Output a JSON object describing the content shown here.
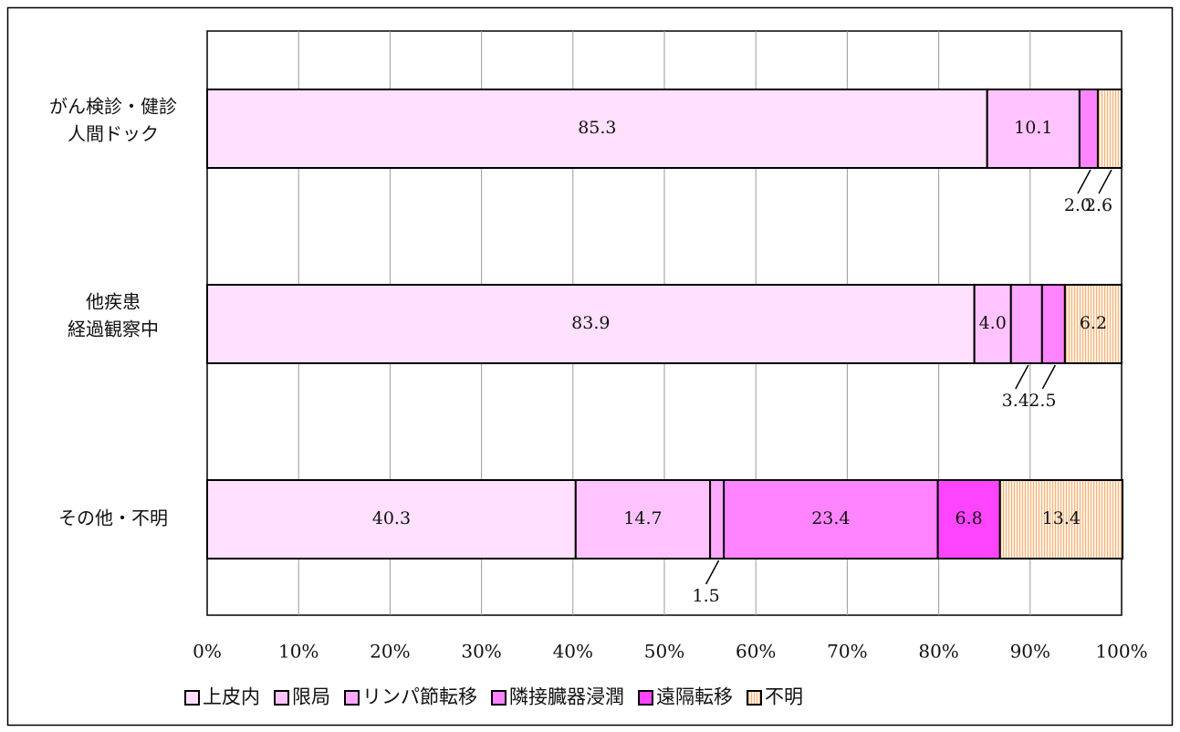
{
  "chart_data": {
    "type": "bar",
    "orientation": "horizontal",
    "stacked": "percent",
    "categories": [
      "がん検診・健診\n人間ドック",
      "他疾患\n経過観察中",
      "その他・不明"
    ],
    "series": [
      {
        "name": "上皮内",
        "color": "#ffe0ff",
        "values": [
          85.3,
          83.9,
          40.3
        ]
      },
      {
        "name": "限局",
        "color": "#ffc4ff",
        "values": [
          10.1,
          4.0,
          14.7
        ]
      },
      {
        "name": "リンパ節転移",
        "color": "#ffa8ff",
        "values": [
          0.0,
          3.4,
          1.5
        ]
      },
      {
        "name": "隣接臓器浸潤",
        "color": "#ff84ff",
        "values": [
          2.0,
          2.5,
          23.4
        ]
      },
      {
        "name": "遠隔転移",
        "color": "#ff44ff",
        "values": [
          0.0,
          0.0,
          6.8
        ]
      },
      {
        "name": "不明",
        "color": "#fde3c8",
        "values": [
          2.6,
          6.2,
          13.4
        ]
      }
    ],
    "data_labels": [
      [
        "85.3",
        "10.1",
        "",
        "2.0",
        "",
        "2.6"
      ],
      [
        "83.9",
        "4.0",
        "3.4",
        "2.5",
        "",
        "6.2"
      ],
      [
        "40.3",
        "14.7",
        "1.5",
        "23.4",
        "6.8",
        "13.4"
      ]
    ],
    "x_ticks": [
      "0%",
      "10%",
      "20%",
      "30%",
      "40%",
      "50%",
      "60%",
      "70%",
      "80%",
      "90%",
      "100%"
    ],
    "xlim": [
      0,
      100
    ],
    "grid": true,
    "legend_position": "bottom"
  }
}
